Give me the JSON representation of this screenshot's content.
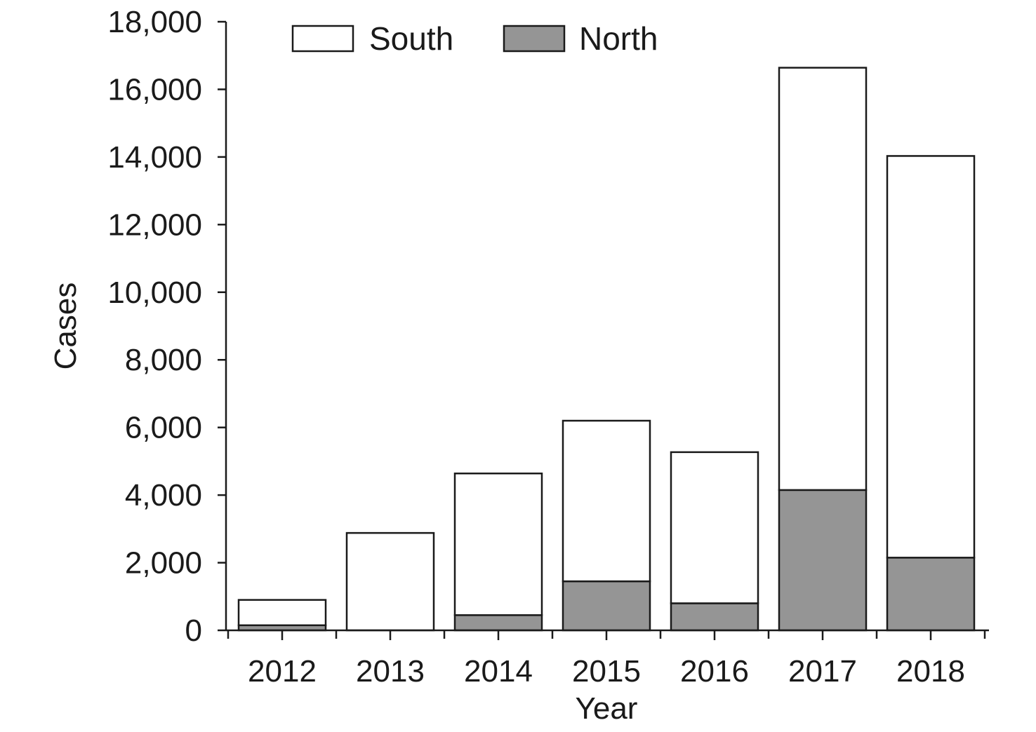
{
  "chart_data": {
    "type": "bar",
    "stacked": true,
    "categories": [
      "2012",
      "2013",
      "2014",
      "2015",
      "2016",
      "2017",
      "2018"
    ],
    "series": [
      {
        "name": "North",
        "values": [
          150,
          0,
          450,
          1450,
          800,
          4150,
          2150
        ],
        "color": "#959595"
      },
      {
        "name": "South",
        "values": [
          750,
          2880,
          4190,
          4750,
          4470,
          12490,
          11880
        ],
        "color": "#ffffff"
      }
    ],
    "xlabel": "Year",
    "ylabel": "Cases",
    "ylim": [
      0,
      18000
    ],
    "yticks": [
      0,
      2000,
      4000,
      6000,
      8000,
      10000,
      12000,
      14000,
      16000,
      18000
    ],
    "ytick_labels": [
      "0",
      "2,000",
      "4,000",
      "6,000",
      "8,000",
      "10,000",
      "12,000",
      "14,000",
      "16,000",
      "18,000"
    ],
    "legend": {
      "placement": "top-center",
      "order": [
        "South",
        "North"
      ]
    },
    "grid": false
  }
}
